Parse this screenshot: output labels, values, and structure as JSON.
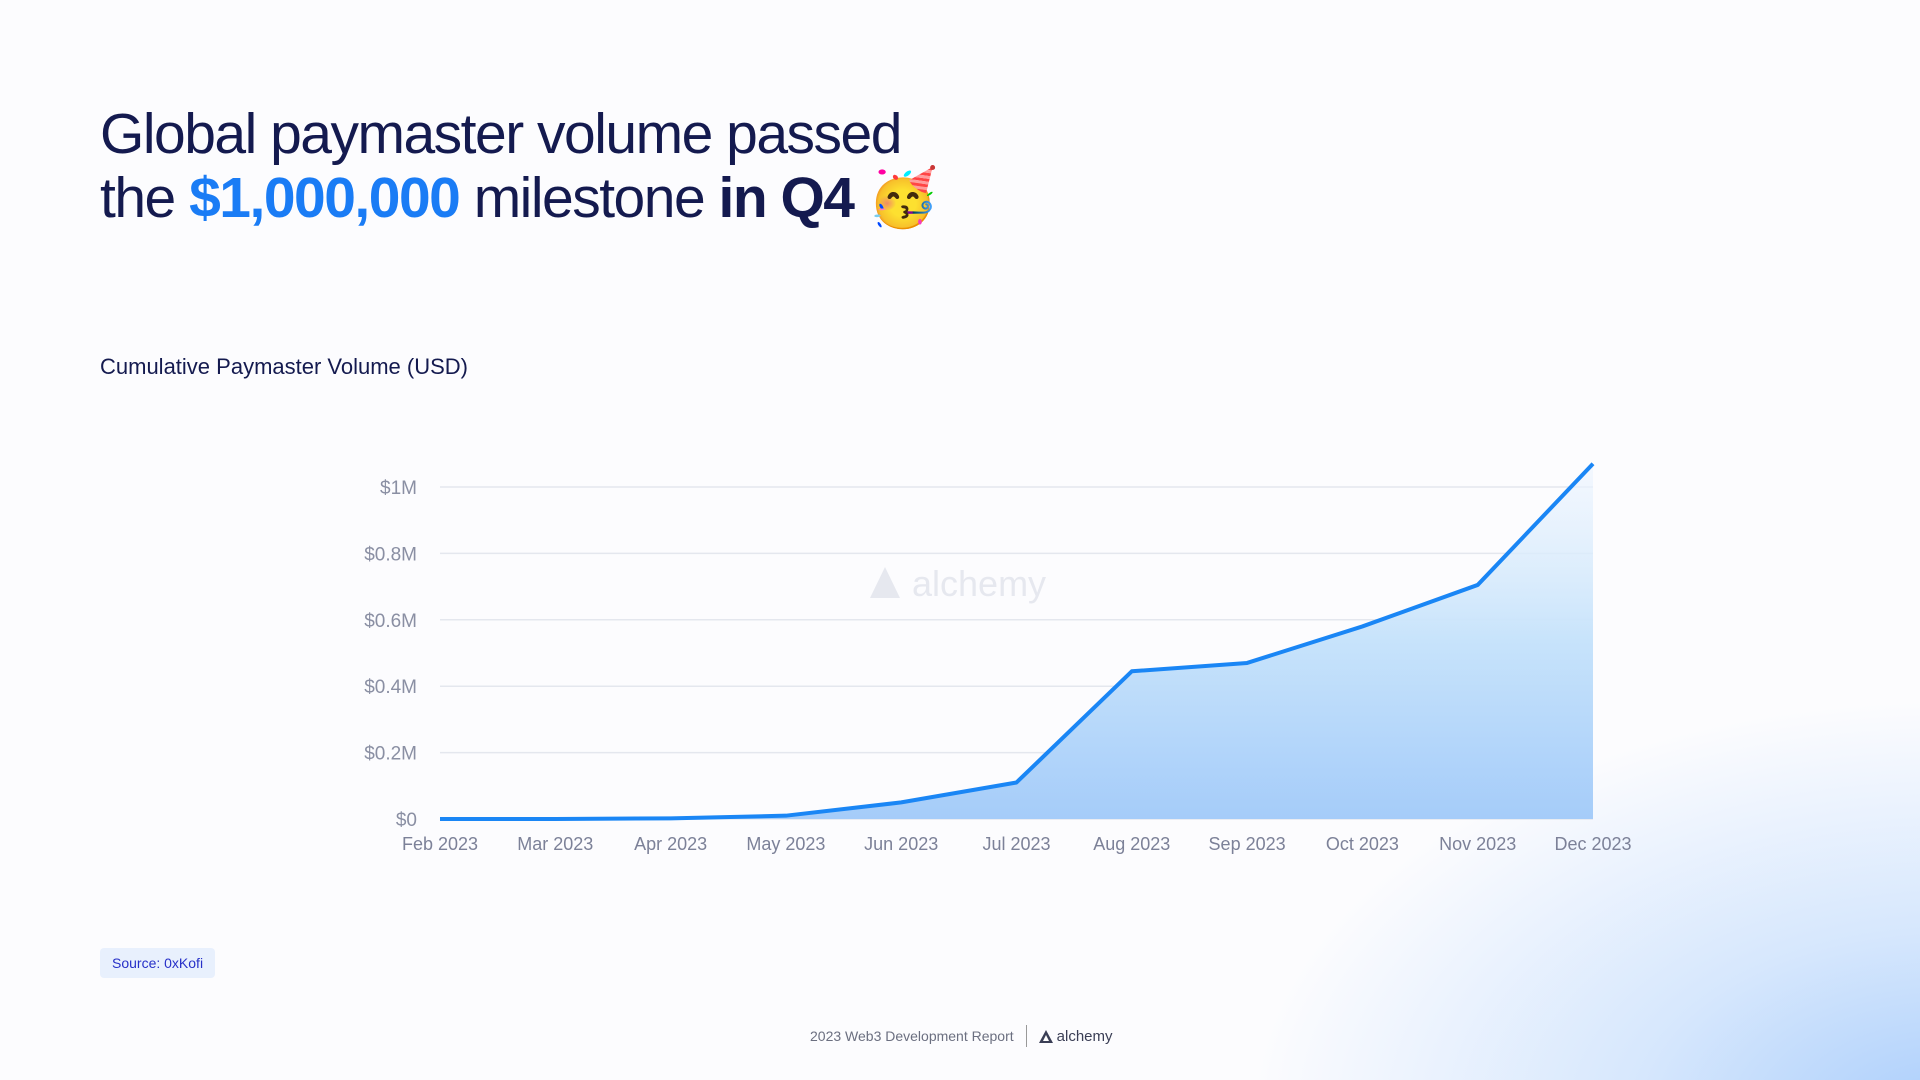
{
  "header": {
    "title_line1": "Global paymaster volume passed",
    "title_pre": "the ",
    "title_highlight": "$1,000,000",
    "title_mid": " milestone ",
    "title_bold": "in Q4",
    "title_emoji": "🥳"
  },
  "source": "Source:  0xKofi",
  "footer": {
    "report": "2023 Web3 Development Report",
    "brand": "alchemy"
  },
  "watermark": "alchemy",
  "colors": {
    "line": "#1a86f5",
    "title": "#141a4f",
    "highlight": "#1a7cf5"
  },
  "chart_data": {
    "type": "area",
    "title": "Cumulative Paymaster Volume (USD)",
    "xlabel": "",
    "ylabel": "",
    "categories": [
      "Feb 2023",
      "Mar 2023",
      "Apr 2023",
      "May 2023",
      "Jun 2023",
      "Jul 2023",
      "Aug 2023",
      "Sep 2023",
      "Oct 2023",
      "Nov 2023",
      "Dec 2023"
    ],
    "values": [
      0,
      0,
      2000,
      10000,
      50000,
      110000,
      445000,
      470000,
      580000,
      705000,
      1070000
    ],
    "ylim": [
      0,
      1000000
    ],
    "yticks": [
      0,
      200000,
      400000,
      600000,
      800000,
      1000000
    ],
    "ytick_labels": [
      "$0",
      "$0.2M",
      "$0.4M",
      "$0.6M",
      "$0.8M",
      "$1M"
    ],
    "grid": true
  }
}
